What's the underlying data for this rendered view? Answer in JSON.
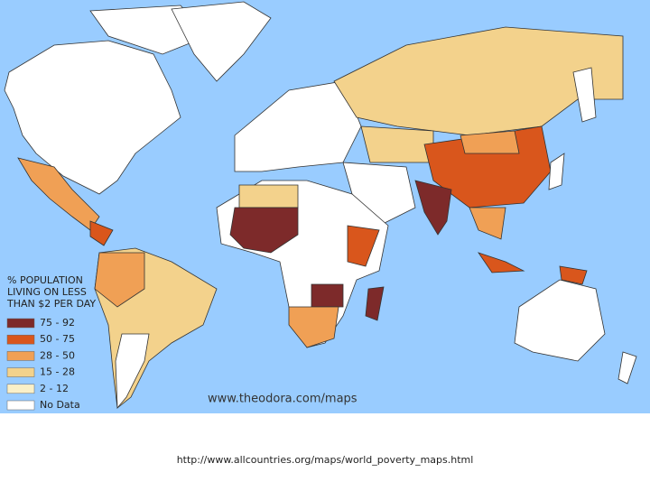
{
  "legend": {
    "title_lines": [
      "% POPULATION",
      "LIVING ON LESS",
      "THAN $2 PER DAY"
    ],
    "items": [
      {
        "label": "75 - 92",
        "color": "#7d2a2a"
      },
      {
        "label": "50 - 75",
        "color": "#d9561c"
      },
      {
        "label": "28 - 50",
        "color": "#f0a055"
      },
      {
        "label": "15 - 28",
        "color": "#f3d28c"
      },
      {
        "label": "2 - 12",
        "color": "#faf0c8"
      },
      {
        "label": "No Data",
        "color": "#ffffff"
      }
    ]
  },
  "watermark": "www.theodora.com/maps",
  "caption": "http://www.allcountries.org/maps/world_poverty_maps.html"
}
